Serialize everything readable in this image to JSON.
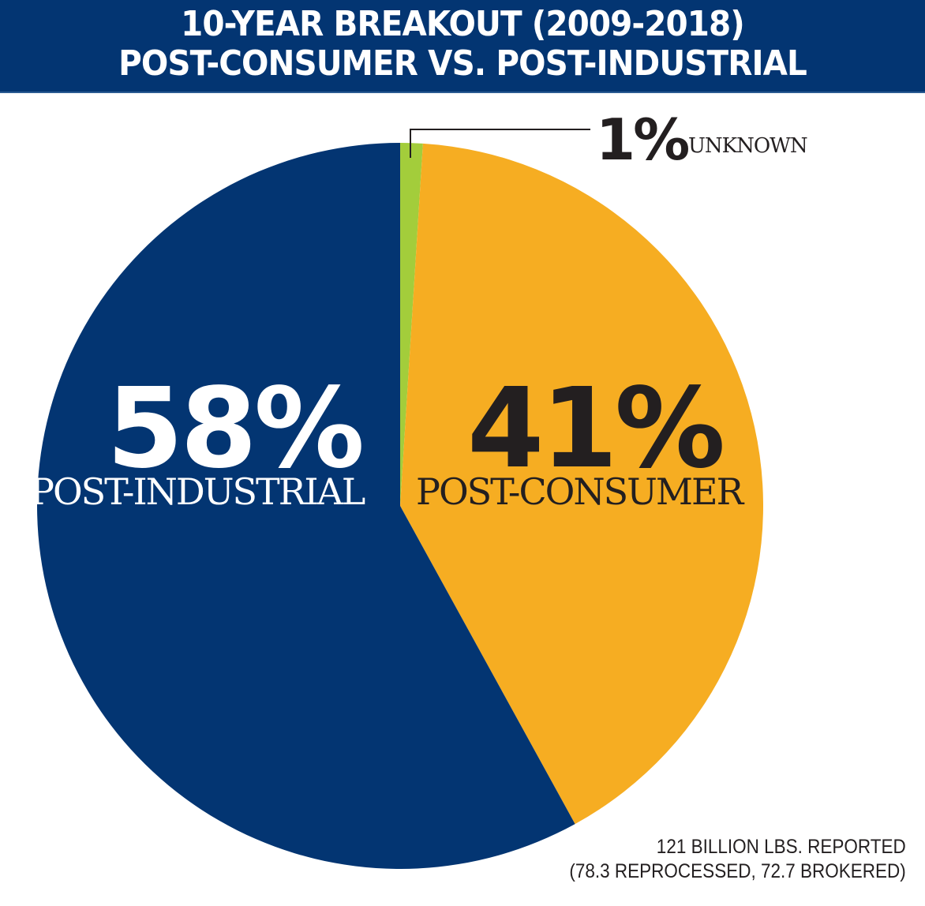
{
  "header": {
    "title_line1": "10-YEAR BREAKOUT (2009-2018)",
    "title_line2": "POST-CONSUMER VS. POST-INDUSTRIAL"
  },
  "labels": {
    "post_industrial_pct": "58%",
    "post_industrial_label": "POST-INDUSTRIAL",
    "post_consumer_pct": "41%",
    "post_consumer_label": "POST-CONSUMER",
    "unknown_pct": "1%",
    "unknown_label": "UNKNOWN"
  },
  "footnote": {
    "line1": "121 BILLION LBS. REPORTED",
    "line2": "(78.3 REPROCESSED, 72.7 BROKERED)"
  },
  "colors": {
    "header_bg": "#033572",
    "post_industrial": "#033572",
    "post_consumer": "#f6ad22",
    "unknown": "#a3cd3b"
  },
  "chart_data": {
    "type": "pie",
    "title": "10-YEAR BREAKOUT (2009-2018) POST-CONSUMER VS. POST-INDUSTRIAL",
    "categories": [
      "Unknown",
      "Post-Consumer",
      "Post-Industrial"
    ],
    "values": [
      1,
      41,
      58
    ],
    "unit": "%",
    "colors": [
      "#a3cd3b",
      "#f6ad22",
      "#033572"
    ],
    "start_angle": "12 o'clock, clockwise",
    "annotations": [
      "121 BILLION LBS. REPORTED",
      "(78.3 REPROCESSED, 72.7 BROKERED)"
    ]
  }
}
